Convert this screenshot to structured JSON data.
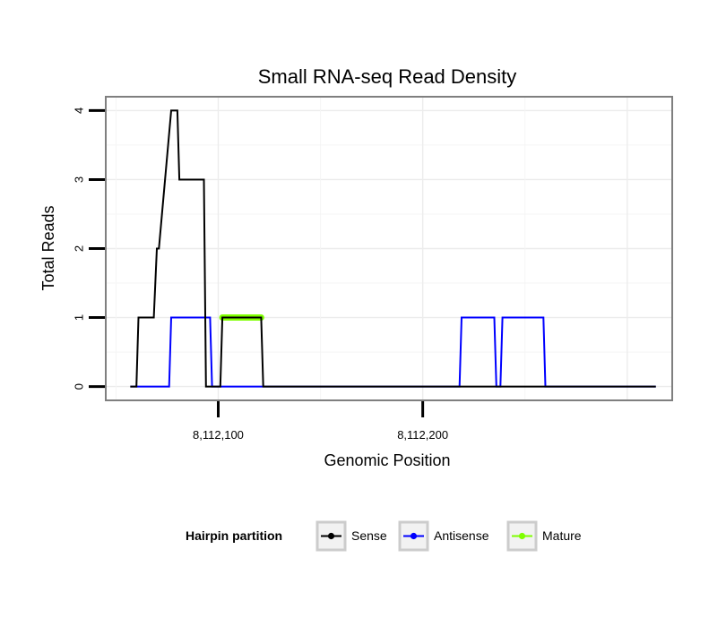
{
  "chart_data": {
    "type": "line",
    "title": "Small RNA-seq Read Density",
    "xlabel": "Genomic Position",
    "ylabel": "Total Reads",
    "xlim": [
      8112045,
      8112322
    ],
    "ylim": [
      -0.2,
      4.2
    ],
    "x_ticks": [
      8112100,
      8112200
    ],
    "x_tick_labels": [
      "8,112,100",
      "8,112,200"
    ],
    "y_ticks": [
      0,
      1,
      2,
      3,
      4
    ],
    "y_tick_labels": [
      "0",
      "1",
      "2",
      "3",
      "4"
    ],
    "grid": true,
    "legend": {
      "title": "Hairpin partition",
      "position": "bottom",
      "entries": [
        "Sense",
        "Antisense",
        "Mature"
      ]
    },
    "series": [
      {
        "name": "Sense",
        "color": "#000000",
        "x": [
          8112057,
          8112060,
          8112061,
          8112068,
          8112068.5,
          8112070,
          8112071,
          8112077,
          8112078,
          8112080,
          8112081,
          8112093,
          8112094,
          8112098,
          8112099,
          8112101,
          8112102,
          8112121,
          8112122,
          8112314
        ],
        "y": [
          0,
          0,
          1,
          1,
          1,
          2,
          2,
          4,
          4,
          4,
          3,
          3,
          0,
          0,
          0,
          0,
          1,
          1,
          0,
          0
        ]
      },
      {
        "name": "Antisense",
        "color": "#0000ff",
        "x": [
          8112057,
          8112076,
          8112077,
          8112096,
          8112097,
          8112218,
          8112219,
          8112235,
          8112236,
          8112238,
          8112239,
          8112259,
          8112260,
          8112314
        ],
        "y": [
          0,
          0,
          1,
          1,
          0,
          0,
          1,
          1,
          0,
          0,
          1,
          1,
          0,
          0
        ]
      },
      {
        "name": "Mature",
        "color": "#7fff00",
        "x": [
          8112102,
          8112121
        ],
        "y": [
          1,
          1
        ]
      }
    ]
  }
}
